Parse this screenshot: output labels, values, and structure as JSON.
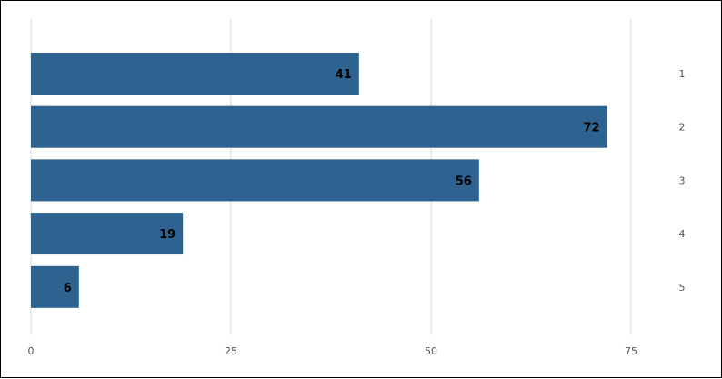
{
  "chart_data": {
    "type": "bar",
    "orientation": "horizontal",
    "categories": [
      "1",
      "2",
      "3",
      "4",
      "5"
    ],
    "values": [
      41,
      72,
      56,
      19,
      6
    ],
    "xlim": [
      0,
      75
    ],
    "x_ticks": [
      0,
      25,
      50,
      75
    ],
    "grid": true,
    "title": "",
    "xlabel": "",
    "ylabel": "",
    "bar_color": "#2e6290",
    "grid_color": "#d9d9d9"
  }
}
